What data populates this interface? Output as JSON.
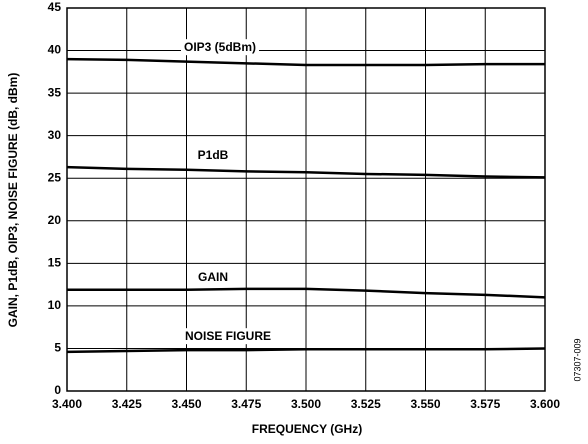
{
  "chart_data": {
    "type": "line",
    "x_label": "FREQUENCY (GHz)",
    "y_label": "GAIN, P1dB, OIP3, NOISE FIGURE (dB, dBm)",
    "figure_id": "07307-009",
    "x": [
      3.4,
      3.425,
      3.45,
      3.475,
      3.5,
      3.525,
      3.55,
      3.575,
      3.6
    ],
    "series": [
      {
        "name": "OIP3 (5dBm)",
        "color": "#000000",
        "values": [
          39.0,
          38.9,
          38.7,
          38.5,
          38.3,
          38.3,
          38.3,
          38.4,
          38.4
        ]
      },
      {
        "name": "P1dB",
        "color": "#000000",
        "values": [
          26.3,
          26.1,
          26.0,
          25.8,
          25.7,
          25.5,
          25.4,
          25.2,
          25.1
        ]
      },
      {
        "name": "GAIN",
        "color": "#000000",
        "values": [
          11.9,
          11.9,
          11.9,
          12.0,
          12.0,
          11.8,
          11.5,
          11.3,
          11.0
        ]
      },
      {
        "name": "NOISE FIGURE",
        "color": "#000000",
        "values": [
          4.6,
          4.7,
          4.8,
          4.8,
          4.9,
          4.9,
          4.9,
          4.9,
          5.0
        ]
      }
    ],
    "xlim": [
      3.4,
      3.6
    ],
    "xticks": [
      {
        "value": 3.4,
        "label": "3.400"
      },
      {
        "value": 3.425,
        "label": "3.425"
      },
      {
        "value": 3.45,
        "label": "3.450"
      },
      {
        "value": 3.475,
        "label": "3.475"
      },
      {
        "value": 3.5,
        "label": "3.500"
      },
      {
        "value": 3.525,
        "label": "3.525"
      },
      {
        "value": 3.55,
        "label": "3.550"
      },
      {
        "value": 3.575,
        "label": "3.575"
      },
      {
        "value": 3.6,
        "label": "3.600"
      }
    ],
    "ylim": [
      0,
      45
    ],
    "yticks": [
      0,
      5,
      10,
      15,
      20,
      25,
      30,
      35,
      40,
      45
    ],
    "grid": true
  }
}
